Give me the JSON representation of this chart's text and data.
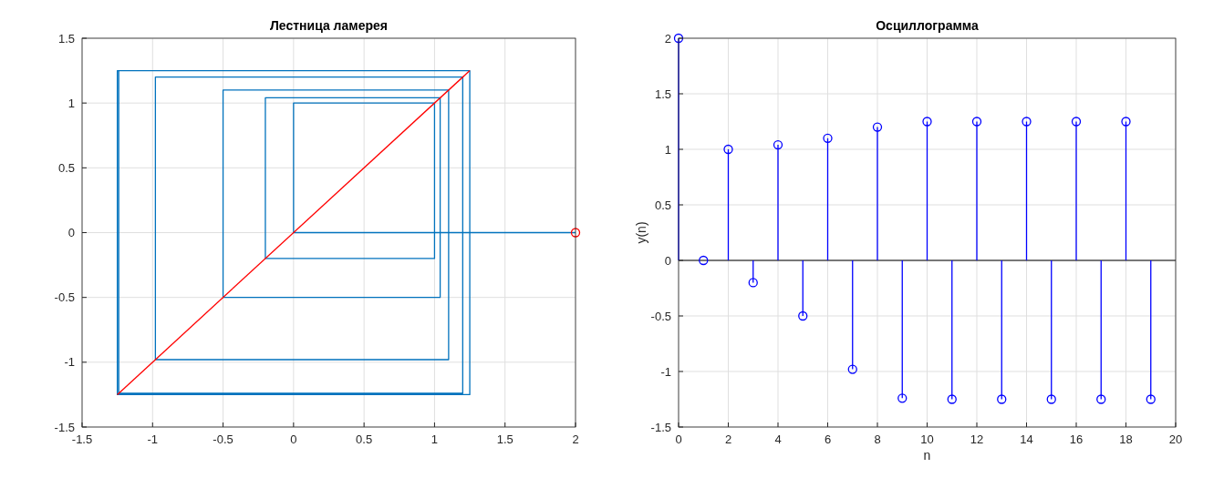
{
  "chart_data": [
    {
      "type": "line",
      "title": "Лестница ламерея",
      "xlim": [
        -1.5,
        2
      ],
      "xticks": [
        -1.5,
        -1,
        -0.5,
        0,
        0.5,
        1,
        1.5,
        2
      ],
      "ylim": [
        -1.5,
        1.5
      ],
      "yticks": [
        -1.5,
        -1,
        -0.5,
        0,
        0.5,
        1,
        1.5
      ],
      "grid": true,
      "series": [
        {
          "color": "#0072bd",
          "x": [
            2,
            0,
            0,
            1,
            1,
            -0.2,
            -0.2,
            1.04,
            1.04,
            -0.5,
            -0.5,
            1.1,
            1.1,
            -0.98,
            -0.98,
            1.2,
            1.2,
            -1.24,
            -1.24,
            1.25,
            1.25,
            -1.25,
            -1.25,
            1.25,
            1.25,
            -1.25
          ],
          "values": [
            0,
            0,
            1,
            1,
            -0.2,
            -0.2,
            1.04,
            1.04,
            -0.5,
            -0.5,
            1.1,
            1.1,
            -0.98,
            -0.98,
            1.2,
            1.2,
            -1.24,
            -1.24,
            1.25,
            1.25,
            -1.25,
            -1.25,
            1.25,
            1.25,
            -1.25,
            -1.25
          ]
        },
        {
          "color": "#ff0000",
          "x": [
            -1.25,
            1.25
          ],
          "values": [
            -1.25,
            1.25
          ]
        },
        {
          "type": "scatter",
          "marker": "circle",
          "color": "#ff0000",
          "x": [
            2
          ],
          "values": [
            0
          ]
        }
      ]
    },
    {
      "type": "lollipop",
      "title": "Осциллограмма",
      "xlabel": "n",
      "ylabel": "y(n)",
      "marker": "circle",
      "xlim": [
        0,
        20
      ],
      "xticks": [
        0,
        2,
        4,
        6,
        8,
        10,
        12,
        14,
        16,
        18,
        20
      ],
      "ylim": [
        -1.5,
        2
      ],
      "yticks": [
        -1.5,
        -1,
        -0.5,
        0,
        0.5,
        1,
        1.5,
        2
      ],
      "grid": true,
      "x": [
        0,
        1,
        2,
        3,
        4,
        5,
        6,
        7,
        8,
        9,
        10,
        11,
        12,
        13,
        14,
        15,
        16,
        17,
        18,
        19
      ],
      "series": [
        {
          "color": "#0000ff",
          "values": [
            2,
            0,
            1,
            -0.2,
            1.04,
            -0.5,
            1.1,
            -0.98,
            1.2,
            -1.24,
            1.25,
            -1.25,
            1.25,
            -1.25,
            1.25,
            -1.25,
            1.25,
            -1.25,
            1.25,
            -1.25
          ]
        }
      ]
    }
  ]
}
